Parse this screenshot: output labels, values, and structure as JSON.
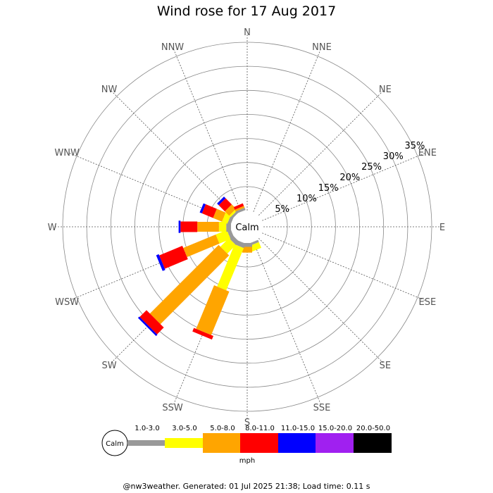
{
  "title": "Wind rose for 17 Aug 2017",
  "footer": "@nw3weather. Generated: 01 Jul 2025 21:38; Load time: 0.11 s",
  "calm_label": "Calm",
  "colors": {
    "grid": "#888888",
    "calm": "#999999",
    "bins": [
      "#999999",
      "#ffff00",
      "#ffa500",
      "#ff0000",
      "#0000ff",
      "#a020f0",
      "#000000"
    ]
  },
  "chart_data": {
    "type": "windrose",
    "title": "Wind rose for 17 Aug 2017",
    "directions": [
      "N",
      "NNE",
      "NE",
      "ENE",
      "E",
      "ESE",
      "SE",
      "SSE",
      "S",
      "SSW",
      "SW",
      "WSW",
      "W",
      "WNW",
      "NW",
      "NNW"
    ],
    "ring_labels": [
      "5%",
      "10%",
      "15%",
      "20%",
      "25%",
      "30%",
      "35%"
    ],
    "rmax": 35,
    "speed_bins": [
      "1.0-3.0",
      "3.0-5.0",
      "5.0-8.0",
      "8.0-11.0",
      "11.0-15.0",
      "15.0-20.0",
      "20.0-50.0"
    ],
    "unit": "mph",
    "series": [
      {
        "direction": "N",
        "values": [
          0,
          0,
          0,
          0,
          0,
          0,
          0
        ]
      },
      {
        "direction": "NNE",
        "values": [
          0,
          0,
          0,
          0,
          0,
          0,
          0
        ]
      },
      {
        "direction": "NE",
        "values": [
          0,
          0,
          0,
          0,
          0,
          0,
          0
        ]
      },
      {
        "direction": "ENE",
        "values": [
          0,
          0,
          0,
          0,
          0,
          0,
          0
        ]
      },
      {
        "direction": "E",
        "values": [
          0,
          0,
          0,
          0,
          0,
          0,
          0
        ]
      },
      {
        "direction": "ESE",
        "values": [
          0,
          0,
          0,
          0,
          0,
          0,
          0
        ]
      },
      {
        "direction": "SE",
        "values": [
          0,
          0,
          0,
          0,
          0,
          0,
          0
        ]
      },
      {
        "direction": "SSE",
        "values": [
          0.5,
          1.3,
          0,
          0,
          0,
          0,
          0
        ]
      },
      {
        "direction": "S",
        "values": [
          0.8,
          0,
          1.2,
          0,
          0,
          0,
          0
        ]
      },
      {
        "direction": "SSW",
        "values": [
          1.0,
          9.5,
          9.8,
          0.8,
          0,
          0,
          0
        ]
      },
      {
        "direction": "SW",
        "values": [
          1.0,
          2.5,
          20.2,
          2.0,
          0.4,
          0,
          0
        ]
      },
      {
        "direction": "WSW",
        "values": [
          0.8,
          2.5,
          7.3,
          5.2,
          0.6,
          0,
          0
        ]
      },
      {
        "direction": "W",
        "values": [
          1.0,
          1.5,
          4.5,
          3.5,
          0.4,
          0,
          0
        ]
      },
      {
        "direction": "WNW",
        "values": [
          0.7,
          1.2,
          2.0,
          2.5,
          0.5,
          0,
          0
        ]
      },
      {
        "direction": "NW",
        "values": [
          0.5,
          0.4,
          1.3,
          1.8,
          0.5,
          0,
          0
        ]
      },
      {
        "direction": "NNW",
        "values": [
          0.5,
          0,
          0.4,
          0.6,
          0,
          0,
          0
        ]
      }
    ]
  }
}
